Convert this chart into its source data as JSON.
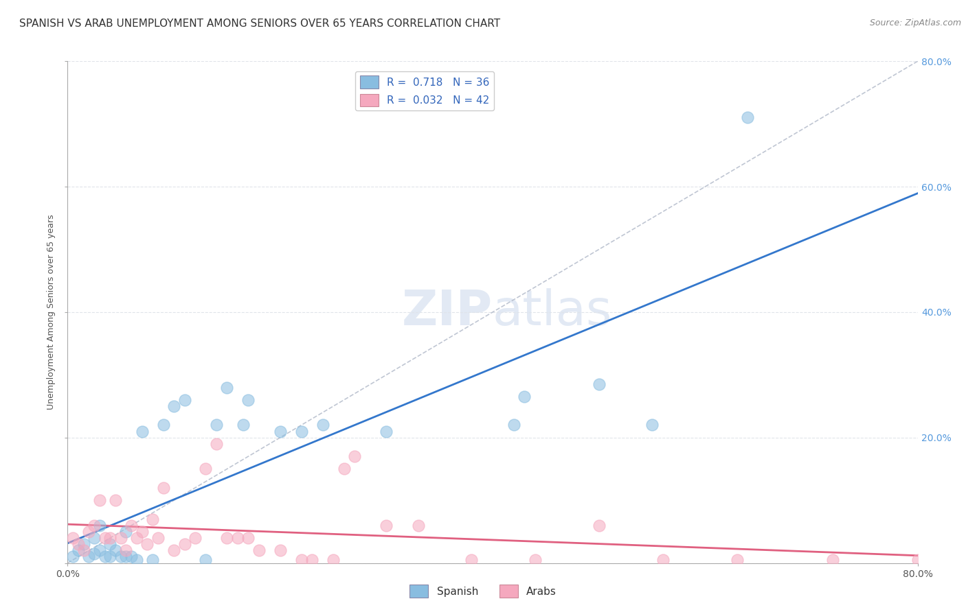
{
  "title": "SPANISH VS ARAB UNEMPLOYMENT AMONG SENIORS OVER 65 YEARS CORRELATION CHART",
  "source": "Source: ZipAtlas.com",
  "ylabel": "Unemployment Among Seniors over 65 years",
  "xlim": [
    0.0,
    0.8
  ],
  "ylim": [
    0.0,
    0.8
  ],
  "watermark": "ZIPatlas",
  "spanish_color": "#89bde0",
  "arab_color": "#f5a8be",
  "trend_spanish_color": "#3377cc",
  "trend_arab_color": "#e06080",
  "diagonal_color": "#b0b8c8",
  "spanish_x": [
    0.005,
    0.01,
    0.015,
    0.02,
    0.025,
    0.025,
    0.03,
    0.03,
    0.035,
    0.04,
    0.04,
    0.045,
    0.05,
    0.055,
    0.055,
    0.06,
    0.065,
    0.07,
    0.08,
    0.09,
    0.1,
    0.11,
    0.13,
    0.14,
    0.15,
    0.165,
    0.17,
    0.2,
    0.22,
    0.24,
    0.3,
    0.42,
    0.43,
    0.5,
    0.55,
    0.64
  ],
  "spanish_y": [
    0.01,
    0.02,
    0.03,
    0.01,
    0.015,
    0.04,
    0.02,
    0.06,
    0.01,
    0.01,
    0.03,
    0.02,
    0.01,
    0.05,
    0.01,
    0.01,
    0.005,
    0.21,
    0.005,
    0.22,
    0.25,
    0.26,
    0.005,
    0.22,
    0.28,
    0.22,
    0.26,
    0.21,
    0.21,
    0.22,
    0.21,
    0.22,
    0.265,
    0.285,
    0.22,
    0.71
  ],
  "arab_x": [
    0.005,
    0.01,
    0.015,
    0.02,
    0.025,
    0.03,
    0.035,
    0.04,
    0.045,
    0.05,
    0.055,
    0.06,
    0.065,
    0.07,
    0.075,
    0.08,
    0.085,
    0.09,
    0.1,
    0.11,
    0.12,
    0.13,
    0.14,
    0.15,
    0.16,
    0.17,
    0.18,
    0.2,
    0.22,
    0.23,
    0.25,
    0.26,
    0.27,
    0.3,
    0.33,
    0.38,
    0.44,
    0.5,
    0.56,
    0.63,
    0.72,
    0.8
  ],
  "arab_y": [
    0.04,
    0.03,
    0.02,
    0.05,
    0.06,
    0.1,
    0.04,
    0.04,
    0.1,
    0.04,
    0.02,
    0.06,
    0.04,
    0.05,
    0.03,
    0.07,
    0.04,
    0.12,
    0.02,
    0.03,
    0.04,
    0.15,
    0.19,
    0.04,
    0.04,
    0.04,
    0.02,
    0.02,
    0.005,
    0.005,
    0.005,
    0.15,
    0.17,
    0.06,
    0.06,
    0.005,
    0.005,
    0.06,
    0.005,
    0.005,
    0.005,
    0.005
  ],
  "background_color": "#ffffff",
  "grid_color": "#e0e4ea"
}
